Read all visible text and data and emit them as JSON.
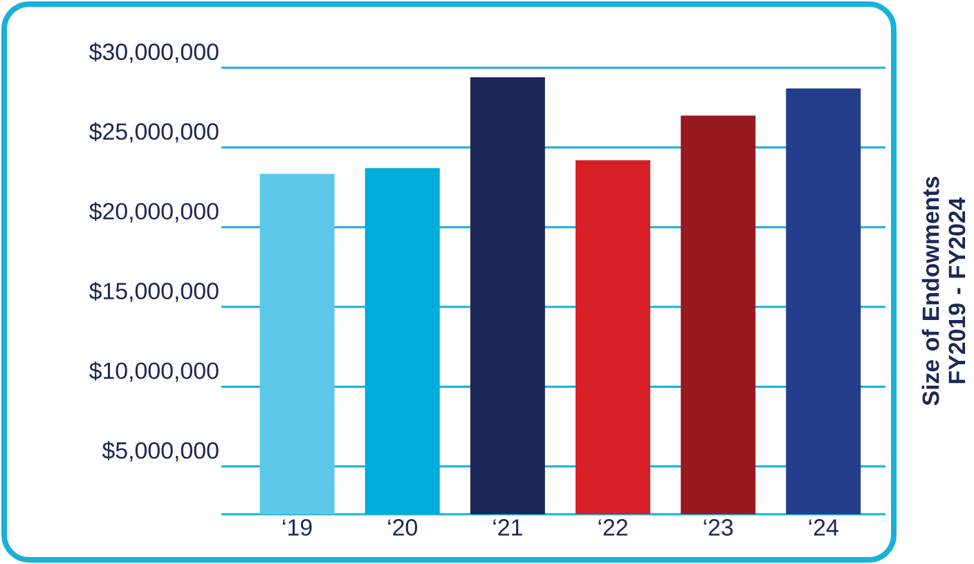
{
  "chart_data": {
    "type": "bar",
    "ylabel": "Size of Endowments FY2019 - FY2024",
    "categories": [
      "‘19",
      "‘20",
      "‘21",
      "‘22",
      "‘23",
      "‘24"
    ],
    "values": [
      23350000,
      23700000,
      29400000,
      24200000,
      27000000,
      28700000
    ],
    "colors": [
      "#5bc8ea",
      "#00acd9",
      "#1d2757",
      "#d71f26",
      "#981a1e",
      "#243e8c"
    ],
    "ylim": [
      2000000,
      30000000
    ],
    "yticks": [
      {
        "value": 5000000,
        "label": "$5,000,000"
      },
      {
        "value": 10000000,
        "label": "$10,000,000"
      },
      {
        "value": 15000000,
        "label": "$15,000,000"
      },
      {
        "value": 20000000,
        "label": "$20,000,000"
      },
      {
        "value": 25000000,
        "label": "$25,000,000"
      },
      {
        "value": 30000000,
        "label": "$30,000,000"
      }
    ],
    "grid": "y"
  }
}
